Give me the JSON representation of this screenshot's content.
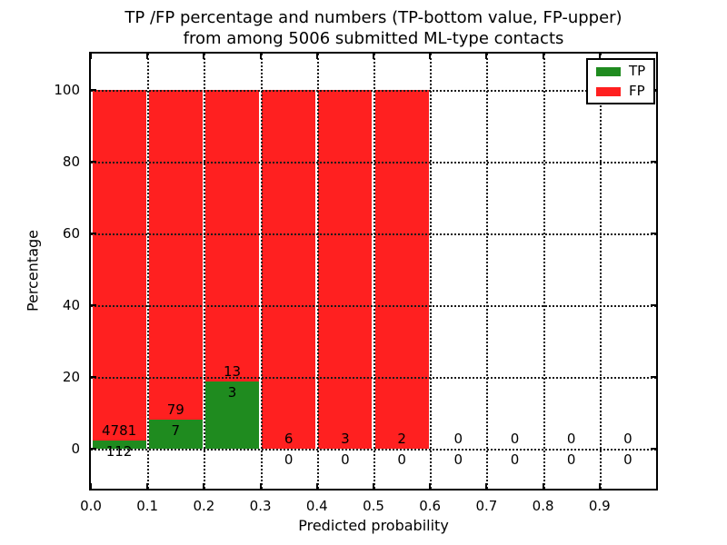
{
  "chart_data": {
    "type": "bar",
    "stacked": true,
    "title": "TP /FP percentage and numbers (TP-bottom value, FP-upper)\nfrom among 5006 submitted ML-type contacts",
    "title_line1": "TP /FP percentage and numbers (TP-bottom value, FP-upper)",
    "title_line2": "from among 5006 submitted ML-type contacts",
    "xlabel": "Predicted probability",
    "ylabel": "Percentage",
    "xlim": [
      0.0,
      1.0
    ],
    "ylim": [
      -11,
      110
    ],
    "grid": "dotted, drawn over bars",
    "legend_position": "upper right",
    "bin_width": 0.1,
    "annotation_rule": "each bin labeled with FP count above green top and TP count below it",
    "xticks": [
      {
        "value": 0.0,
        "label": "0.0"
      },
      {
        "value": 0.1,
        "label": "0.1"
      },
      {
        "value": 0.2,
        "label": "0.2"
      },
      {
        "value": 0.3,
        "label": "0.3"
      },
      {
        "value": 0.4,
        "label": "0.4"
      },
      {
        "value": 0.5,
        "label": "0.5"
      },
      {
        "value": 0.6,
        "label": "0.6"
      },
      {
        "value": 0.7,
        "label": "0.7"
      },
      {
        "value": 0.8,
        "label": "0.8"
      },
      {
        "value": 0.9,
        "label": "0.9"
      }
    ],
    "yticks": [
      {
        "value": 0,
        "label": "0"
      },
      {
        "value": 20,
        "label": "20"
      },
      {
        "value": 40,
        "label": "40"
      },
      {
        "value": 60,
        "label": "60"
      },
      {
        "value": 80,
        "label": "80"
      },
      {
        "value": 100,
        "label": "100"
      }
    ],
    "bins": [
      {
        "x_start": 0.0,
        "x_end": 0.1,
        "tp_count": 112,
        "fp_count": 4781,
        "tp_pct": 2.29,
        "fp_pct": 97.71
      },
      {
        "x_start": 0.1,
        "x_end": 0.2,
        "tp_count": 7,
        "fp_count": 79,
        "tp_pct": 8.14,
        "fp_pct": 91.86
      },
      {
        "x_start": 0.2,
        "x_end": 0.3,
        "tp_count": 3,
        "fp_count": 13,
        "tp_pct": 18.75,
        "fp_pct": 81.25
      },
      {
        "x_start": 0.3,
        "x_end": 0.4,
        "tp_count": 0,
        "fp_count": 6,
        "tp_pct": 0,
        "fp_pct": 100
      },
      {
        "x_start": 0.4,
        "x_end": 0.5,
        "tp_count": 0,
        "fp_count": 3,
        "tp_pct": 0,
        "fp_pct": 100
      },
      {
        "x_start": 0.5,
        "x_end": 0.6,
        "tp_count": 0,
        "fp_count": 2,
        "tp_pct": 0,
        "fp_pct": 100
      },
      {
        "x_start": 0.6,
        "x_end": 0.7,
        "tp_count": 0,
        "fp_count": 0,
        "tp_pct": 0,
        "fp_pct": 0
      },
      {
        "x_start": 0.7,
        "x_end": 0.8,
        "tp_count": 0,
        "fp_count": 0,
        "tp_pct": 0,
        "fp_pct": 0
      },
      {
        "x_start": 0.8,
        "x_end": 0.9,
        "tp_count": 0,
        "fp_count": 0,
        "tp_pct": 0,
        "fp_pct": 0
      },
      {
        "x_start": 0.9,
        "x_end": 1.0,
        "tp_count": 0,
        "fp_count": 0,
        "tp_pct": 0,
        "fp_pct": 0
      }
    ],
    "legend": [
      {
        "label": "TP",
        "color": "#1f8b1f"
      },
      {
        "label": "FP",
        "color": "#ff2020"
      }
    ],
    "colors": {
      "tp": "#1f8b1f",
      "fp": "#ff2020",
      "grid": "#1a1a1a",
      "axis": "#000000",
      "background": "#ffffff",
      "text": "#000000"
    }
  }
}
